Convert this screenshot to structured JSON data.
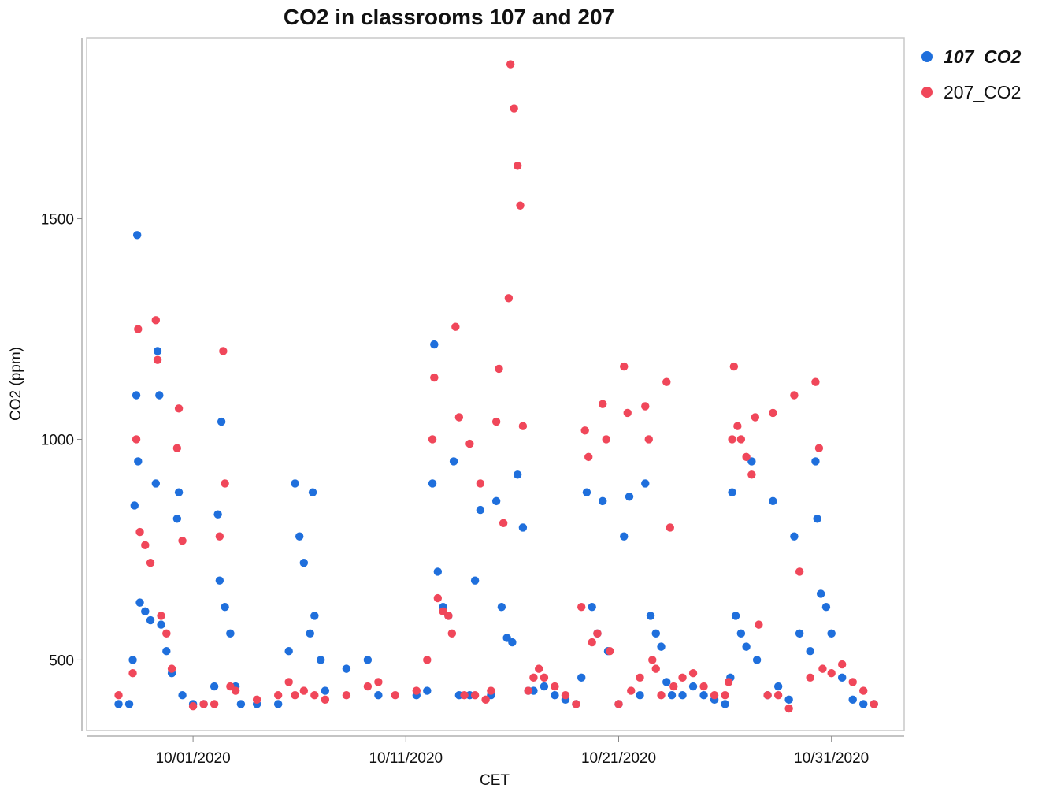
{
  "chart_data": {
    "type": "scatter",
    "title": "CO2 in classrooms 107 and 207",
    "x_label": "CET",
    "y_label": "CO2 (ppm)",
    "xlim": [
      "2020-09-26T00:00",
      "2020-11-03T10:00"
    ],
    "xticks": [
      {
        "value": "2020-10-01T00:00",
        "label": "10/01/2020"
      },
      {
        "value": "2020-10-11T00:00",
        "label": "10/11/2020"
      },
      {
        "value": "2020-10-21T00:00",
        "label": "10/21/2020"
      },
      {
        "value": "2020-10-31T00:00",
        "label": "10/31/2020"
      }
    ],
    "ylim": [
      340,
      1910
    ],
    "yticks": [
      500,
      1000,
      1500
    ],
    "grid": false,
    "legend": "right",
    "series": [
      {
        "name": "107_CO2",
        "color": "#1f6fdc",
        "x": [
          "2020-09-27T12:00",
          "2020-09-28T00:00",
          "2020-09-28T04:00",
          "2020-09-28T06:00",
          "2020-09-28T08:00",
          "2020-09-28T09:00",
          "2020-09-28T10:00",
          "2020-09-28T12:00",
          "2020-09-28T18:00",
          "2020-09-29T00:00",
          "2020-09-29T06:00",
          "2020-09-29T08:00",
          "2020-09-29T10:00",
          "2020-09-29T12:00",
          "2020-09-29T18:00",
          "2020-09-30T00:00",
          "2020-09-30T06:00",
          "2020-09-30T08:00",
          "2020-09-30T12:00",
          "2020-10-01T00:00",
          "2020-10-01T12:00",
          "2020-10-02T00:00",
          "2020-10-02T04:00",
          "2020-10-02T06:00",
          "2020-10-02T08:00",
          "2020-10-02T12:00",
          "2020-10-02T18:00",
          "2020-10-03T00:00",
          "2020-10-03T06:00",
          "2020-10-04T00:00",
          "2020-10-05T00:00",
          "2020-10-05T12:00",
          "2020-10-05T19:00",
          "2020-10-06T00:00",
          "2020-10-06T05:00",
          "2020-10-06T12:00",
          "2020-10-06T15:00",
          "2020-10-06T17:00",
          "2020-10-07T00:00",
          "2020-10-07T05:00",
          "2020-10-08T05:00",
          "2020-10-09T05:00",
          "2020-10-09T17:00",
          "2020-10-11T12:00",
          "2020-10-12T00:00",
          "2020-10-12T06:00",
          "2020-10-12T08:00",
          "2020-10-12T12:00",
          "2020-10-12T18:00",
          "2020-10-13T00:00",
          "2020-10-13T06:00",
          "2020-10-13T12:00",
          "2020-10-14T00:00",
          "2020-10-14T06:00",
          "2020-10-14T12:00",
          "2020-10-15T00:00",
          "2020-10-15T06:00",
          "2020-10-15T12:00",
          "2020-10-15T18:00",
          "2020-10-16T00:00",
          "2020-10-16T06:00",
          "2020-10-16T12:00",
          "2020-10-16T18:00",
          "2020-10-17T00:00",
          "2020-10-17T12:00",
          "2020-10-18T00:00",
          "2020-10-18T12:00",
          "2020-10-19T00:00",
          "2020-10-19T06:00",
          "2020-10-19T12:00",
          "2020-10-19T18:00",
          "2020-10-20T00:00",
          "2020-10-20T06:00",
          "2020-10-20T12:00",
          "2020-10-21T00:00",
          "2020-10-21T06:00",
          "2020-10-21T12:00",
          "2020-10-22T00:00",
          "2020-10-22T06:00",
          "2020-10-22T12:00",
          "2020-10-22T18:00",
          "2020-10-23T00:00",
          "2020-10-23T06:00",
          "2020-10-23T12:00",
          "2020-10-24T00:00",
          "2020-10-24T12:00",
          "2020-10-25T00:00",
          "2020-10-25T12:00",
          "2020-10-26T00:00",
          "2020-10-26T06:00",
          "2020-10-26T08:00",
          "2020-10-26T12:00",
          "2020-10-26T18:00",
          "2020-10-27T00:00",
          "2020-10-27T06:00",
          "2020-10-27T12:00",
          "2020-10-28T00:00",
          "2020-10-28T06:00",
          "2020-10-28T12:00",
          "2020-10-29T00:00",
          "2020-10-29T06:00",
          "2020-10-29T12:00",
          "2020-10-30T00:00",
          "2020-10-30T06:00",
          "2020-10-30T08:00",
          "2020-10-30T12:00",
          "2020-10-30T18:00",
          "2020-10-31T00:00",
          "2020-10-31T12:00",
          "2020-11-01T00:00",
          "2020-11-01T12:00",
          "2020-11-02T00:00"
        ],
        "values": [
          400,
          400,
          500,
          850,
          1100,
          1463,
          950,
          630,
          610,
          590,
          900,
          1200,
          1100,
          580,
          520,
          470,
          820,
          880,
          420,
          400,
          400,
          440,
          830,
          680,
          1040,
          620,
          560,
          440,
          400,
          400,
          400,
          520,
          900,
          780,
          720,
          560,
          880,
          600,
          500,
          430,
          480,
          500,
          420,
          420,
          430,
          900,
          1215,
          700,
          620,
          600,
          950,
          420,
          420,
          680,
          840,
          420,
          860,
          620,
          550,
          540,
          920,
          800,
          430,
          430,
          440,
          420,
          410,
          400,
          460,
          880,
          620,
          560,
          860,
          520,
          400,
          780,
          870,
          420,
          900,
          600,
          560,
          530,
          450,
          420,
          420,
          440,
          420,
          410,
          400,
          460,
          880,
          600,
          560,
          530,
          950,
          500,
          420,
          860,
          440,
          410,
          780,
          560,
          520,
          950,
          820,
          650,
          620,
          560,
          460,
          410,
          400,
          400
        ]
      },
      {
        "name": "207_CO2",
        "color": "#f0475a",
        "x": [
          "2020-09-27T12:00",
          "2020-09-28T04:00",
          "2020-09-28T08:00",
          "2020-09-28T10:00",
          "2020-09-28T12:00",
          "2020-09-28T18:00",
          "2020-09-29T00:00",
          "2020-09-29T06:00",
          "2020-09-29T08:00",
          "2020-09-29T12:00",
          "2020-09-29T18:00",
          "2020-09-30T00:00",
          "2020-09-30T06:00",
          "2020-09-30T08:00",
          "2020-09-30T12:00",
          "2020-10-01T00:00",
          "2020-10-01T12:00",
          "2020-10-02T00:00",
          "2020-10-02T06:00",
          "2020-10-02T10:00",
          "2020-10-02T12:00",
          "2020-10-02T18:00",
          "2020-10-03T00:00",
          "2020-10-04T00:00",
          "2020-10-05T00:00",
          "2020-10-05T12:00",
          "2020-10-05T19:00",
          "2020-10-06T05:00",
          "2020-10-06T17:00",
          "2020-10-07T05:00",
          "2020-10-08T05:00",
          "2020-10-09T05:00",
          "2020-10-09T17:00",
          "2020-10-10T12:00",
          "2020-10-11T12:00",
          "2020-10-12T00:00",
          "2020-10-12T06:00",
          "2020-10-12T08:00",
          "2020-10-12T12:00",
          "2020-10-12T18:00",
          "2020-10-13T00:00",
          "2020-10-13T04:00",
          "2020-10-13T08:00",
          "2020-10-13T12:00",
          "2020-10-13T18:00",
          "2020-10-14T00:00",
          "2020-10-14T06:00",
          "2020-10-14T12:00",
          "2020-10-14T18:00",
          "2020-10-15T00:00",
          "2020-10-15T06:00",
          "2020-10-15T09:00",
          "2020-10-15T14:00",
          "2020-10-15T20:00",
          "2020-10-15T22:00",
          "2020-10-16T02:00",
          "2020-10-16T06:00",
          "2020-10-16T09:00",
          "2020-10-16T12:00",
          "2020-10-16T18:00",
          "2020-10-17T00:00",
          "2020-10-17T06:00",
          "2020-10-17T12:00",
          "2020-10-18T00:00",
          "2020-10-18T12:00",
          "2020-10-19T00:00",
          "2020-10-19T06:00",
          "2020-10-19T10:00",
          "2020-10-19T14:00",
          "2020-10-19T18:00",
          "2020-10-20T00:00",
          "2020-10-20T06:00",
          "2020-10-20T10:00",
          "2020-10-20T14:00",
          "2020-10-21T00:00",
          "2020-10-21T06:00",
          "2020-10-21T10:00",
          "2020-10-21T14:00",
          "2020-10-22T00:00",
          "2020-10-22T06:00",
          "2020-10-22T10:00",
          "2020-10-22T14:00",
          "2020-10-22T18:00",
          "2020-10-23T00:00",
          "2020-10-23T06:00",
          "2020-10-23T10:00",
          "2020-10-23T14:00",
          "2020-10-24T00:00",
          "2020-10-24T12:00",
          "2020-10-25T00:00",
          "2020-10-25T12:00",
          "2020-10-26T00:00",
          "2020-10-26T04:00",
          "2020-10-26T08:00",
          "2020-10-26T10:00",
          "2020-10-26T14:00",
          "2020-10-26T18:00",
          "2020-10-27T00:00",
          "2020-10-27T06:00",
          "2020-10-27T10:00",
          "2020-10-27T14:00",
          "2020-10-28T00:00",
          "2020-10-28T06:00",
          "2020-10-28T12:00",
          "2020-10-29T00:00",
          "2020-10-29T06:00",
          "2020-10-29T12:00",
          "2020-10-30T00:00",
          "2020-10-30T06:00",
          "2020-10-30T10:00",
          "2020-10-30T14:00",
          "2020-10-31T00:00",
          "2020-10-31T12:00",
          "2020-11-01T00:00",
          "2020-11-01T12:00",
          "2020-11-02T00:00"
        ],
        "values": [
          420,
          470,
          1000,
          1250,
          790,
          760,
          720,
          1270,
          1180,
          600,
          560,
          480,
          980,
          1070,
          770,
          395,
          400,
          400,
          780,
          1200,
          900,
          440,
          430,
          410,
          420,
          450,
          420,
          430,
          420,
          410,
          420,
          440,
          450,
          420,
          430,
          500,
          1000,
          1140,
          640,
          610,
          600,
          560,
          1255,
          1050,
          420,
          990,
          420,
          900,
          410,
          430,
          1040,
          1160,
          810,
          1320,
          1850,
          1750,
          1620,
          1530,
          1030,
          430,
          460,
          480,
          460,
          440,
          420,
          400,
          620,
          1020,
          960,
          540,
          560,
          1080,
          1000,
          520,
          400,
          1165,
          1060,
          430,
          460,
          1075,
          1000,
          500,
          480,
          420,
          1130,
          800,
          440,
          460,
          470,
          440,
          420,
          420,
          450,
          1000,
          1165,
          1030,
          1000,
          960,
          920,
          1050,
          580,
          420,
          1060,
          420,
          390,
          1100,
          700,
          460,
          1130,
          980,
          480,
          470,
          490,
          450,
          430,
          400
        ]
      }
    ]
  }
}
